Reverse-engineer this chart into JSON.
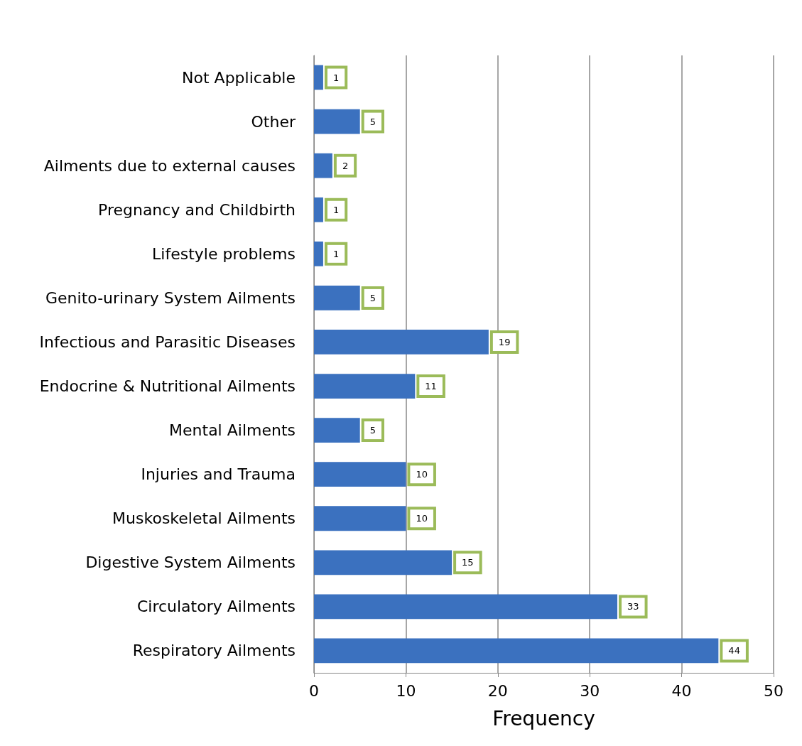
{
  "chart_data": {
    "type": "bar",
    "orientation": "horizontal",
    "xlabel": "Frequency",
    "categories": [
      "Not Applicable",
      "Other",
      "Ailments due to external causes",
      "Pregnancy and Childbirth",
      "Lifestyle problems",
      "Genito-urinary System Ailments",
      "Infectious and Parasitic Diseases",
      "Endocrine & Nutritional Ailments",
      "Mental Ailments",
      "Injuries and Trauma",
      "Muskoskeletal Ailments",
      "Digestive System Ailments",
      "Circulatory Ailments",
      "Respiratory Ailments"
    ],
    "values": [
      1,
      5,
      2,
      1,
      1,
      5,
      19,
      11,
      5,
      10,
      10,
      15,
      33,
      44
    ],
    "color": "#3b71bf",
    "data_labels": true,
    "xlim": [
      0,
      50
    ],
    "xticks": [
      0,
      10,
      20,
      30,
      40,
      50
    ],
    "grid": "x"
  }
}
